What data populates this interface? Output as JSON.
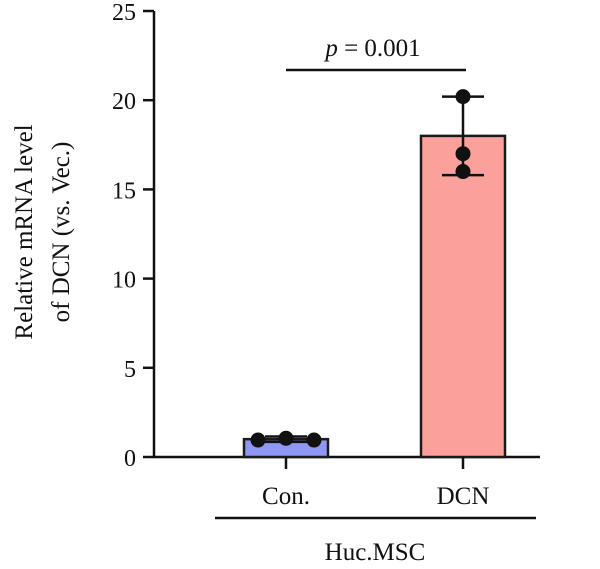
{
  "chart_data": {
    "type": "bar",
    "categories": [
      "Con.",
      "DCN"
    ],
    "values": [
      1.0,
      18.0
    ],
    "error_bars": [
      {
        "low": 0.85,
        "high": 1.15
      },
      {
        "low": 15.8,
        "high": 20.2
      }
    ],
    "points": [
      [
        0.95,
        1.05,
        0.95
      ],
      [
        16.0,
        17.0,
        20.2
      ]
    ],
    "colors": [
      "#8f97f5",
      "#fca09c"
    ],
    "ylabel_lines": [
      "Relative mRNA level",
      "of DCN (vs. Vec.)"
    ],
    "group_label": "Huc.MSC",
    "ylim": [
      0,
      25
    ],
    "yticks": [
      "0",
      "5",
      "10",
      "15",
      "20",
      "25"
    ],
    "significance": {
      "prefix": "p",
      "text": " = 0.001"
    },
    "grid": false
  }
}
